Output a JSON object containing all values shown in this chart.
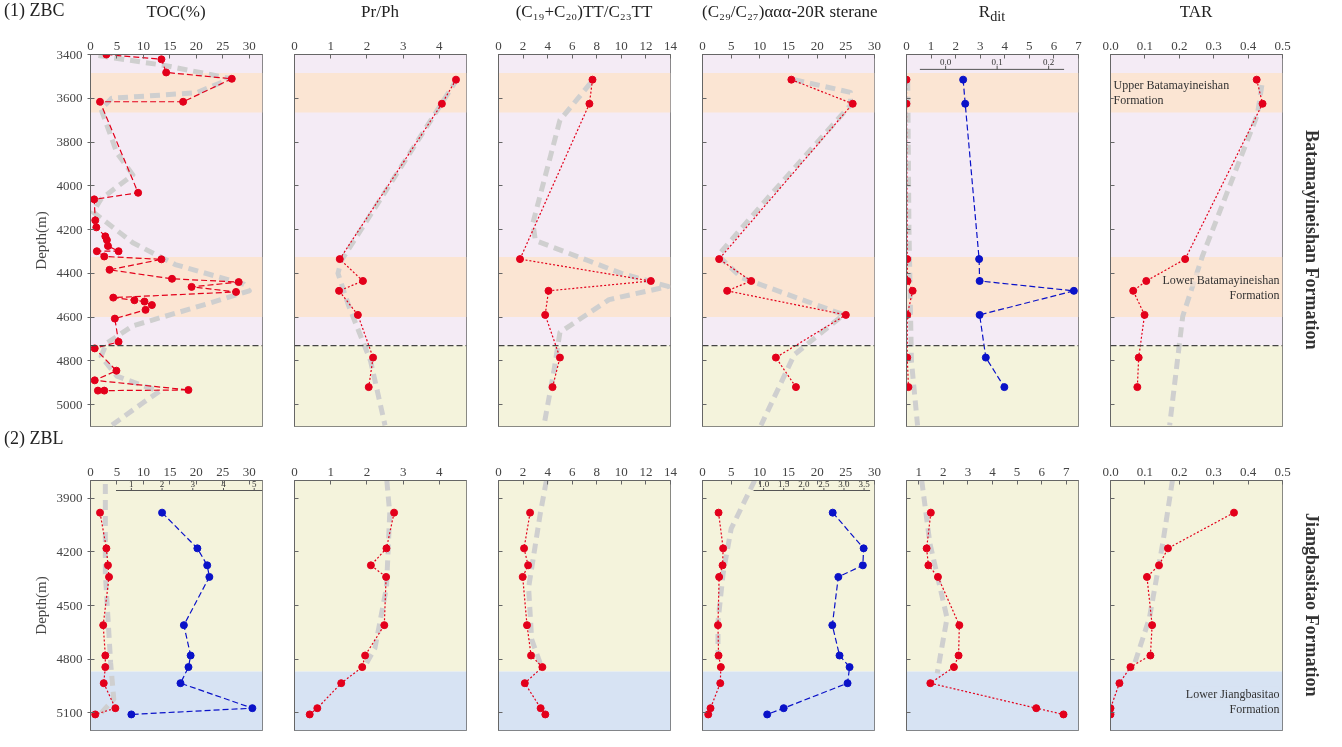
{
  "chart_data": [
    {
      "type": "line",
      "title": "TOC(%)",
      "ylabel": "Depth(m)",
      "xlim": [
        0,
        32.5
      ],
      "xticks": [
        0,
        5,
        10,
        15,
        20,
        25,
        30
      ],
      "ylim": [
        5100,
        3400
      ],
      "yticks": [
        3400,
        3600,
        3800,
        4000,
        4200,
        4400,
        4600,
        4800,
        5000
      ],
      "marker": "circle",
      "line_style": "dotted",
      "annotations": [
        "(1) ZBC"
      ],
      "bands": [
        {
          "axis": "y",
          "from": 3400,
          "to": 4730,
          "color": "#f4ebf5"
        },
        {
          "axis": "y",
          "from": 3485,
          "to": 3665,
          "color": "#fbe5d3"
        },
        {
          "axis": "y",
          "from": 4325,
          "to": 4600,
          "color": "#fbe5d3"
        },
        {
          "axis": "y",
          "from": 4730,
          "to": 5100,
          "color": "#f4f3dc"
        }
      ],
      "ref_lines": [
        {
          "axis": "y",
          "value": 4730,
          "color": "#444444",
          "line_style": "dashed"
        }
      ],
      "series": [
        {
          "color": "#cfcfcf",
          "marker": "none",
          "line_style": "dashed",
          "x": [
            1.5,
            14,
            26.5,
            20,
            4,
            2,
            5,
            8,
            2,
            0.5,
            8,
            16,
            29,
            30,
            22,
            8,
            3,
            2,
            5,
            13,
            10,
            4
          ],
          "values": [
            3405,
            3450,
            3510,
            3575,
            3600,
            3650,
            3850,
            3950,
            4060,
            4120,
            4260,
            4360,
            4450,
            4480,
            4540,
            4640,
            4720,
            4780,
            4870,
            4940,
            4990,
            5095
          ]
        },
        {
          "color": "#e3001b",
          "line_style": "dashed",
          "x": [
            3.0,
            13.4,
            14.3,
            26.7,
            17.5,
            1.8,
            9.0,
            0.7,
            0.9,
            1.1,
            2.8,
            3.1,
            3.3,
            5.3,
            1.2,
            2.6,
            13.4,
            3.6,
            15.4,
            28.0,
            19.1,
            27.5,
            4.3,
            8.3,
            10.2,
            11.6,
            10.4,
            4.6,
            5.3,
            0.8,
            4.9,
            0.8,
            18.5,
            2.6,
            1.4
          ],
          "values": [
            3400,
            3422,
            3482,
            3511,
            3616,
            3616,
            4032,
            4062,
            4158,
            4190,
            4231,
            4248,
            4275,
            4299,
            4299,
            4323,
            4336,
            4384,
            4425,
            4440,
            4462,
            4485,
            4511,
            4523,
            4529,
            4545,
            4567,
            4607,
            4713,
            4743,
            4845,
            4889,
            4933,
            4936,
            4936
          ]
        }
      ]
    },
    {
      "type": "line",
      "title": "Pr/Ph",
      "xlim": [
        0,
        4.75
      ],
      "xticks": [
        0,
        1,
        2,
        3,
        4
      ],
      "ylim": [
        5100,
        3400
      ],
      "yticks": [
        3400,
        3600,
        3800,
        4000,
        4200,
        4400,
        4600,
        4800,
        5000
      ],
      "tick_labels": "x",
      "marker": "circle",
      "line_style": "dotted",
      "bands": [
        {
          "axis": "y",
          "from": 3400,
          "to": 4730,
          "color": "#f4ebf5"
        },
        {
          "axis": "y",
          "from": 3485,
          "to": 3665,
          "color": "#fbe5d3"
        },
        {
          "axis": "y",
          "from": 4325,
          "to": 4600,
          "color": "#fbe5d3"
        },
        {
          "axis": "y",
          "from": 4730,
          "to": 5100,
          "color": "#f4f3dc"
        }
      ],
      "ref_lines": [
        {
          "axis": "y",
          "value": 4730,
          "color": "#444444",
          "line_style": "dashed"
        }
      ],
      "series": [
        {
          "color": "#cfcfcf",
          "marker": "none",
          "line_style": "dashed",
          "x": [
            4.5,
            1.3,
            1.2,
            1.5,
            2.1,
            2.5
          ],
          "values": [
            3510,
            4340,
            4400,
            4550,
            4800,
            5095
          ]
        },
        {
          "color": "#e3001b",
          "x": [
            4.46,
            4.07,
            1.25,
            1.89,
            1.23,
            1.75,
            2.17,
            2.05
          ],
          "values": [
            3515,
            3625,
            4335,
            4435,
            4480,
            4590,
            4785,
            4920
          ]
        }
      ]
    },
    {
      "type": "line",
      "title": "(C₁₉+C₂₀)TT/C₂₃TT",
      "xlim": [
        0,
        14
      ],
      "xticks": [
        0,
        2,
        4,
        6,
        8,
        10,
        12,
        14
      ],
      "ylim": [
        5100,
        3400
      ],
      "yticks": [
        3400,
        3600,
        3800,
        4000,
        4200,
        4400,
        4600,
        4800,
        5000
      ],
      "tick_labels": "x",
      "marker": "circle",
      "line_style": "dotted",
      "bands": [
        {
          "axis": "y",
          "from": 3400,
          "to": 4730,
          "color": "#f4ebf5"
        },
        {
          "axis": "y",
          "from": 3485,
          "to": 3665,
          "color": "#fbe5d3"
        },
        {
          "axis": "y",
          "from": 4325,
          "to": 4600,
          "color": "#fbe5d3"
        },
        {
          "axis": "y",
          "from": 4730,
          "to": 5100,
          "color": "#f4f3dc"
        }
      ],
      "ref_lines": [
        {
          "axis": "y",
          "value": 4730,
          "color": "#444444",
          "line_style": "dashed"
        }
      ],
      "series": [
        {
          "color": "#cfcfcf",
          "marker": "none",
          "line_style": "dashed",
          "x": [
            7.5,
            5,
            2.8,
            3,
            10,
            13.8,
            9,
            5,
            4.5,
            3.7
          ],
          "values": [
            3530,
            3700,
            4170,
            4250,
            4400,
            4460,
            4520,
            4670,
            4850,
            5095
          ]
        },
        {
          "color": "#e3001b",
          "x": [
            7.65,
            7.4,
            1.75,
            12.4,
            4.07,
            3.8,
            5.0,
            4.4
          ],
          "values": [
            3515,
            3625,
            4335,
            4435,
            4480,
            4590,
            4785,
            4920
          ]
        }
      ]
    },
    {
      "type": "line",
      "title": "(C₂₉/C₂₇)ααα-20R sterane",
      "xlim": [
        0,
        30
      ],
      "xticks": [
        0,
        5,
        10,
        15,
        20,
        25,
        30
      ],
      "ylim": [
        5100,
        3400
      ],
      "yticks": [
        3400,
        3600,
        3800,
        4000,
        4200,
        4400,
        4600,
        4800,
        5000
      ],
      "tick_labels": "x",
      "marker": "circle",
      "line_style": "dotted",
      "bands": [
        {
          "axis": "y",
          "from": 3400,
          "to": 4730,
          "color": "#f4ebf5"
        },
        {
          "axis": "y",
          "from": 3485,
          "to": 3665,
          "color": "#fbe5d3"
        },
        {
          "axis": "y",
          "from": 4325,
          "to": 4600,
          "color": "#fbe5d3"
        },
        {
          "axis": "y",
          "from": 4730,
          "to": 5100,
          "color": "#f4f3dc"
        }
      ],
      "ref_lines": [
        {
          "axis": "y",
          "value": 4730,
          "color": "#444444",
          "line_style": "dashed"
        }
      ],
      "series": [
        {
          "color": "#cfcfcf",
          "marker": "none",
          "line_style": "dashed",
          "x": [
            16,
            25.8,
            25.8,
            10.9,
            2.7,
            6.8,
            24.6,
            16,
            10.2
          ],
          "values": [
            3515,
            3573,
            3631,
            4070,
            4318,
            4420,
            4589,
            4772,
            5095
          ]
        },
        {
          "color": "#e3001b",
          "x": [
            15.5,
            26.2,
            2.9,
            8.5,
            4.3,
            25.0,
            12.8,
            16.3
          ],
          "values": [
            3515,
            3625,
            4335,
            4435,
            4480,
            4590,
            4785,
            4920
          ]
        }
      ]
    },
    {
      "type": "line",
      "title": "R$_{dit}$",
      "xlim": [
        0,
        7
      ],
      "xticks": [
        0,
        1,
        2,
        3,
        4,
        5,
        6,
        7
      ],
      "x2lim": [
        -0.076,
        0.258
      ],
      "x2ticks": [
        {
          "value": 0,
          "label": "0.0"
        },
        0.1,
        0.2
      ],
      "ylim": [
        5100,
        3400
      ],
      "yticks": [
        3400,
        3600,
        3800,
        4000,
        4200,
        4400,
        4600,
        4800,
        5000
      ],
      "tick_labels": "x",
      "marker": "circle",
      "line_style": "dotted",
      "bands": [
        {
          "axis": "y",
          "from": 3400,
          "to": 4730,
          "color": "#f4ebf5"
        },
        {
          "axis": "y",
          "from": 3485,
          "to": 3665,
          "color": "#fbe5d3"
        },
        {
          "axis": "y",
          "from": 4325,
          "to": 4600,
          "color": "#fbe5d3"
        },
        {
          "axis": "y",
          "from": 4730,
          "to": 5100,
          "color": "#f4f3dc"
        }
      ],
      "ref_lines": [
        {
          "axis": "y",
          "value": 4730,
          "color": "#444444",
          "line_style": "dashed"
        }
      ],
      "series": [
        {
          "color": "#cfcfcf",
          "marker": "none",
          "line_style": "dashed",
          "x": [
            0.05,
            0.1,
            0.2,
            0.45
          ],
          "values": [
            3520,
            4200,
            4800,
            5095
          ]
        },
        {
          "color": "#e3001b",
          "x": [
            0,
            0,
            0.03,
            0.04,
            0.25,
            0.03,
            0.03,
            0.08
          ],
          "values": [
            3515,
            3625,
            4335,
            4435,
            4480,
            4590,
            4785,
            4920
          ]
        },
        {
          "color": "#0a12c8",
          "axis": "x2",
          "line_style": "dashed",
          "x": [
            0.034,
            0.038,
            0.065,
            0.066,
            0.249,
            0.066,
            0.078,
            0.114
          ],
          "values": [
            3515,
            3625,
            4335,
            4435,
            4480,
            4590,
            4785,
            4920
          ]
        }
      ]
    },
    {
      "type": "line",
      "title": "TAR",
      "xlim": [
        0,
        0.5
      ],
      "xticks": [
        {
          "value": 0,
          "label": "0.0"
        },
        0.1,
        0.2,
        0.3,
        0.4,
        0.5
      ],
      "ylim": [
        5100,
        3400
      ],
      "yticks": [
        3400,
        3600,
        3800,
        4000,
        4200,
        4400,
        4600,
        4800,
        5000
      ],
      "tick_labels": "x",
      "marker": "circle",
      "line_style": "dotted",
      "annotations": [
        "Batamayineishan Formation"
      ],
      "bands": [
        {
          "axis": "y",
          "from": 3400,
          "to": 4730,
          "color": "#f4ebf5"
        },
        {
          "axis": "y",
          "from": 3485,
          "to": 3665,
          "color": "#fbe5d3",
          "label": "Upper Batamayineishan Formation"
        },
        {
          "axis": "y",
          "from": 4325,
          "to": 4600,
          "color": "#fbe5d3",
          "label": "Lower Batamayineishan Formation"
        },
        {
          "axis": "y",
          "from": 4730,
          "to": 5100,
          "color": "#f4f3dc"
        }
      ],
      "ref_lines": [
        {
          "axis": "y",
          "value": 4730,
          "color": "#444444",
          "line_style": "dashed"
        }
      ],
      "series": [
        {
          "color": "#cfcfcf",
          "marker": "none",
          "line_style": "dashed",
          "x": [
            0.44,
            0.427,
            0.268,
            0.21,
            0.172
          ],
          "values": [
            3540,
            3675,
            4318,
            4596,
            5094
          ]
        },
        {
          "color": "#e3001b",
          "x": [
            0.425,
            0.442,
            0.217,
            0.104,
            0.066,
            0.099,
            0.082,
            0.078
          ],
          "values": [
            3515,
            3625,
            4335,
            4435,
            4480,
            4590,
            4785,
            4920
          ]
        }
      ]
    },
    {
      "type": "line",
      "ylabel": "Depth(m)",
      "xlim": [
        0,
        32.5
      ],
      "xticks": [
        0,
        5,
        10,
        15,
        20,
        25,
        30
      ],
      "x2lim": [
        -0.33,
        5.27
      ],
      "x2ticks": [
        1,
        2,
        3,
        4,
        5
      ],
      "ylim": [
        5200,
        3800
      ],
      "yticks": [
        3900,
        4200,
        4500,
        4800,
        5100
      ],
      "marker": "circle",
      "line_style": "dotted",
      "annotations": [
        "(2) ZBL"
      ],
      "bands": [
        {
          "axis": "y",
          "from": 3800,
          "to": 4870,
          "color": "#f4f3dc"
        },
        {
          "axis": "y",
          "from": 4870,
          "to": 5200,
          "color": "#d7e3f3"
        }
      ],
      "series": [
        {
          "color": "#cfcfcf",
          "marker": "none",
          "line_style": "dashed",
          "x": [
            2.8,
            2.8,
            3.8,
            4.4,
            1.3
          ],
          "values": [
            3820,
            4320,
            4820,
            5025,
            5125
          ]
        },
        {
          "color": "#e3001b",
          "x": [
            1.8,
            3.0,
            3.3,
            3.5,
            2.4,
            2.8,
            2.8,
            2.5,
            4.7,
            0.9
          ],
          "values": [
            3980,
            4180,
            4275,
            4340,
            4610,
            4780,
            4845,
            4935,
            5075,
            5110
          ]
        },
        {
          "color": "#0a12c8",
          "axis": "x2",
          "line_style": "dashed",
          "x": [
            2.0,
            3.15,
            3.47,
            3.54,
            2.71,
            2.93,
            2.86,
            2.6,
            4.94,
            1.0
          ],
          "values": [
            3980,
            4180,
            4275,
            4340,
            4610,
            4780,
            4845,
            4935,
            5075,
            5110
          ]
        }
      ]
    },
    {
      "type": "line",
      "xlim": [
        0,
        4.75
      ],
      "xticks": [
        0,
        1,
        2,
        3,
        4
      ],
      "ylim": [
        5200,
        3800
      ],
      "yticks": [
        3900,
        4200,
        4500,
        4800,
        5100
      ],
      "tick_labels": "x",
      "marker": "circle",
      "line_style": "dotted",
      "bands": [
        {
          "axis": "y",
          "from": 3800,
          "to": 4870,
          "color": "#f4f3dc"
        },
        {
          "axis": "y",
          "from": 4870,
          "to": 5200,
          "color": "#d7e3f3"
        }
      ],
      "series": [
        {
          "color": "#cfcfcf",
          "marker": "none",
          "line_style": "dashed",
          "x": [
            2.55,
            2.63,
            2.54,
            2.22,
            1.9
          ],
          "values": [
            3800,
            3985,
            4400,
            4740,
            4855
          ]
        },
        {
          "color": "#e3001b",
          "x": [
            2.75,
            2.54,
            2.11,
            2.53,
            2.48,
            1.95,
            1.87,
            1.29,
            0.63,
            0.42
          ],
          "values": [
            3980,
            4180,
            4275,
            4340,
            4610,
            4780,
            4845,
            4935,
            5075,
            5110
          ]
        }
      ]
    },
    {
      "type": "line",
      "xlim": [
        0,
        14
      ],
      "xticks": [
        0,
        2,
        4,
        6,
        8,
        10,
        12,
        14
      ],
      "ylim": [
        5200,
        3800
      ],
      "yticks": [
        3900,
        4200,
        4500,
        4800,
        5100
      ],
      "tick_labels": "x",
      "marker": "circle",
      "line_style": "dotted",
      "bands": [
        {
          "axis": "y",
          "from": 3800,
          "to": 4870,
          "color": "#f4f3dc"
        },
        {
          "axis": "y",
          "from": 4870,
          "to": 5200,
          "color": "#d7e3f3"
        }
      ],
      "series": [
        {
          "color": "#cfcfcf",
          "marker": "none",
          "line_style": "dashed",
          "x": [
            3.9,
            3.4,
            2.45,
            2.7,
            3.4
          ],
          "values": [
            3800,
            3985,
            4400,
            4690,
            4825
          ]
        },
        {
          "color": "#e3001b",
          "x": [
            2.57,
            2.08,
            2.41,
            1.97,
            2.32,
            2.65,
            3.57,
            2.14,
            3.43,
            3.81
          ],
          "values": [
            3980,
            4180,
            4275,
            4340,
            4610,
            4780,
            4845,
            4935,
            5075,
            5110
          ]
        }
      ]
    },
    {
      "type": "line",
      "xlim": [
        0,
        30
      ],
      "xticks": [
        0,
        5,
        10,
        15,
        20,
        25,
        30
      ],
      "x2lim": [
        -0.52,
        3.76
      ],
      "x2ticks": [
        {
          "value": 1,
          "label": "1.0"
        },
        1.5,
        {
          "value": 2,
          "label": "2.0"
        },
        2.5,
        {
          "value": 3,
          "label": "3.0"
        },
        3.5
      ],
      "ylim": [
        5200,
        3800
      ],
      "yticks": [
        3900,
        4200,
        4500,
        4800,
        5100
      ],
      "tick_labels": "x",
      "marker": "circle",
      "line_style": "dotted",
      "bands": [
        {
          "axis": "y",
          "from": 3800,
          "to": 4870,
          "color": "#f4f3dc"
        },
        {
          "axis": "y",
          "from": 4870,
          "to": 5200,
          "color": "#d7e3f3"
        }
      ],
      "series": [
        {
          "color": "#cfcfcf",
          "marker": "none",
          "line_style": "dashed",
          "x": [
            9.1,
            5,
            3.6,
            2.7,
            2.7
          ],
          "values": [
            3800,
            4070,
            4320,
            4590,
            4825
          ]
        },
        {
          "color": "#e3001b",
          "x": [
            2.8,
            3.6,
            3.5,
            2.9,
            2.7,
            2.8,
            3.2,
            3.1,
            1.4,
            1.0
          ],
          "values": [
            3980,
            4180,
            4275,
            4340,
            4610,
            4780,
            4845,
            4935,
            5075,
            5110
          ]
        },
        {
          "color": "#0a12c8",
          "axis": "x2",
          "line_style": "dashed",
          "x": [
            2.72,
            3.49,
            3.47,
            2.86,
            2.71,
            2.89,
            3.14,
            3.09,
            1.5,
            1.09
          ],
          "values": [
            3980,
            4180,
            4275,
            4340,
            4610,
            4780,
            4845,
            4935,
            5075,
            5110
          ]
        }
      ]
    },
    {
      "type": "line",
      "xlim": [
        0.5,
        7.5
      ],
      "xticks": [
        1,
        2,
        3,
        4,
        5,
        6,
        7
      ],
      "ylim": [
        5200,
        3800
      ],
      "yticks": [
        3900,
        4200,
        4500,
        4800,
        5100
      ],
      "tick_labels": "x",
      "marker": "circle",
      "line_style": "dotted",
      "bands": [
        {
          "axis": "y",
          "from": 3800,
          "to": 4870,
          "color": "#f4f3dc"
        },
        {
          "axis": "y",
          "from": 4870,
          "to": 5200,
          "color": "#d7e3f3"
        }
      ],
      "series": [
        {
          "color": "#cfcfcf",
          "marker": "none",
          "line_style": "dashed",
          "x": [
            1.12,
            1.45,
            2.15,
            1.75
          ],
          "values": [
            3800,
            4150,
            4570,
            4880
          ]
        },
        {
          "color": "#e3001b",
          "x": [
            1.49,
            1.32,
            1.39,
            1.78,
            2.65,
            2.62,
            2.43,
            1.47,
            5.78,
            6.89
          ],
          "values": [
            3980,
            4180,
            4275,
            4340,
            4610,
            4780,
            4845,
            4935,
            5075,
            5110
          ]
        }
      ]
    },
    {
      "type": "line",
      "xlim": [
        0,
        0.5
      ],
      "xticks": [
        {
          "value": 0,
          "label": "0.0"
        },
        0.1,
        0.2,
        0.3,
        0.4,
        0.5
      ],
      "ylim": [
        5200,
        3800
      ],
      "yticks": [
        3900,
        4200,
        4500,
        4800,
        5100
      ],
      "tick_labels": "x",
      "marker": "circle",
      "line_style": "dotted",
      "annotations": [
        "Jiangbasitao Formation"
      ],
      "bands": [
        {
          "axis": "y",
          "from": 3800,
          "to": 4870,
          "color": "#f4f3dc"
        },
        {
          "axis": "y",
          "from": 4870,
          "to": 5200,
          "color": "#d7e3f3",
          "label": "Lower Jiangbasitao Formation"
        }
      ],
      "series": [
        {
          "color": "#cfcfcf",
          "marker": "none",
          "line_style": "dashed",
          "x": [
            0.18,
            0.152,
            0.113,
            0.065
          ],
          "values": [
            3800,
            4150,
            4571,
            4856
          ]
        },
        {
          "color": "#e3001b",
          "x": [
            0.359,
            0.167,
            0.141,
            0.106,
            0.121,
            0.116,
            0.058,
            0.026,
            0.0,
            0.0
          ],
          "values": [
            3980,
            4180,
            4275,
            4340,
            4610,
            4780,
            4845,
            4935,
            5075,
            5110
          ]
        }
      ]
    }
  ]
}
